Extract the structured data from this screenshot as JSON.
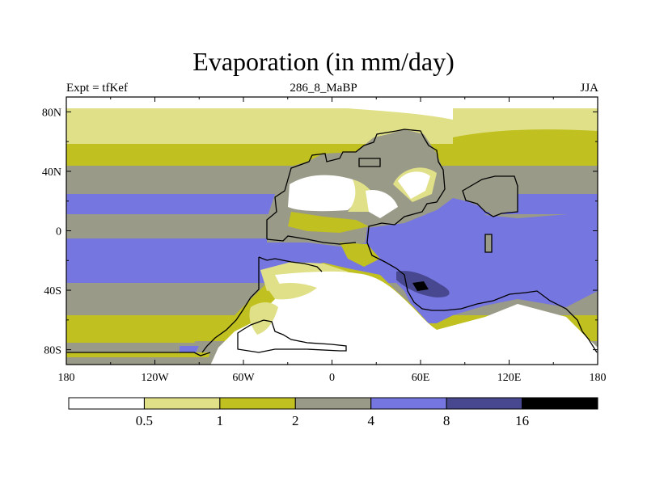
{
  "title": "Evaporation (in mm/day)",
  "left_string": "Expt = tfKef",
  "center_string": "286_8_MaBP",
  "right_string": "JJA",
  "colors": {
    "c0": "#ffffff",
    "c1": "#e0e088",
    "c2": "#c0c020",
    "c3": "#9a9a88",
    "c4": "#7676e0",
    "c5": "#484890",
    "c6": "#000000"
  },
  "chart_data": {
    "type": "heatmap",
    "title": "Evaporation (in mm/day)",
    "subtitle": "286_8_MaBP",
    "xlabel": "",
    "ylabel": "",
    "xlim": [
      -180,
      180
    ],
    "ylim": [
      -90,
      90
    ],
    "x_ticks": [
      "180",
      "120W",
      "60W",
      "0",
      "60E",
      "120E",
      "180"
    ],
    "y_ticks": [
      "80N",
      "40N",
      "0",
      "40S",
      "80S"
    ],
    "colorbar": {
      "levels": [
        "0.5",
        "1",
        "2",
        "4",
        "8",
        "16"
      ],
      "colors": [
        "#ffffff",
        "#e0e088",
        "#c0c020",
        "#9a9a88",
        "#7676e0",
        "#484890",
        "#000000"
      ]
    }
  }
}
